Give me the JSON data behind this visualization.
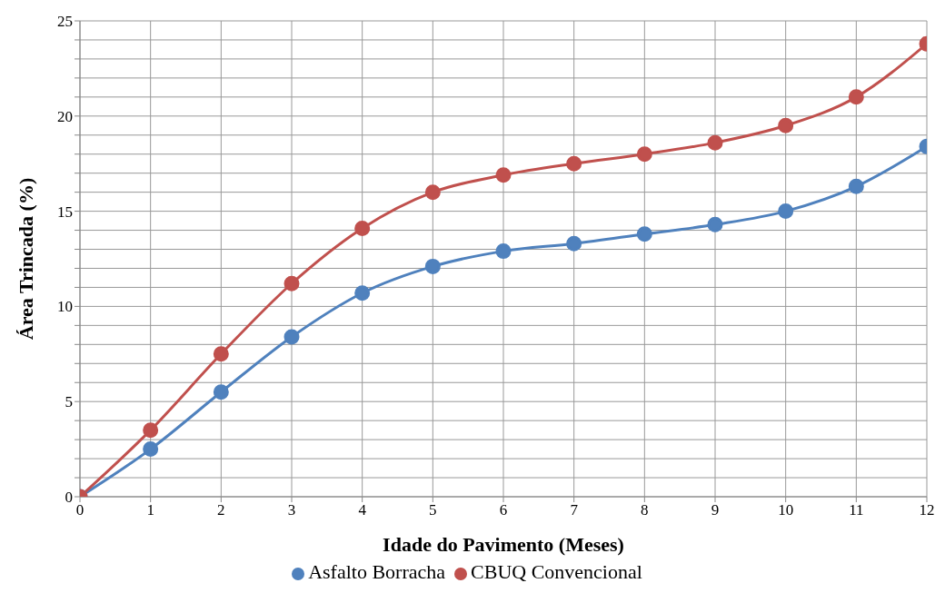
{
  "chart_data": {
    "type": "line",
    "xlabel": "Idade do Pavimento (Meses)",
    "ylabel": "Área Trincada (%)",
    "x": [
      0,
      1,
      2,
      3,
      4,
      5,
      6,
      7,
      8,
      9,
      10,
      11,
      12
    ],
    "series": [
      {
        "name": "Asfalto Borracha",
        "color": "#4f81bd",
        "values": [
          0,
          2.5,
          5.5,
          8.4,
          10.7,
          12.1,
          12.9,
          13.3,
          13.8,
          14.3,
          15.0,
          16.3,
          18.4
        ]
      },
      {
        "name": "CBUQ Convencional",
        "color": "#c0504d",
        "values": [
          0,
          3.5,
          7.5,
          11.2,
          14.1,
          16.0,
          16.9,
          17.5,
          18.0,
          18.6,
          19.5,
          21.0,
          23.8
        ]
      }
    ],
    "xlim": [
      0,
      12
    ],
    "xticks": [
      0,
      1,
      2,
      3,
      4,
      5,
      6,
      7,
      8,
      9,
      10,
      11,
      12
    ],
    "ylim": [
      0,
      25
    ],
    "yticks": [
      0,
      {
        "value": 1,
        "label": null
      },
      {
        "value": 2,
        "label": null
      },
      {
        "value": 3,
        "label": null
      },
      {
        "value": 4,
        "label": null
      },
      5,
      {
        "value": 6,
        "label": null
      },
      {
        "value": 7,
        "label": null
      },
      {
        "value": 8,
        "label": null
      },
      {
        "value": 9,
        "label": null
      },
      10,
      {
        "value": 11,
        "label": null
      },
      {
        "value": 12,
        "label": null
      },
      {
        "value": 13,
        "label": null
      },
      {
        "value": 14,
        "label": null
      },
      15,
      {
        "value": 16,
        "label": null
      },
      {
        "value": 17,
        "label": null
      },
      {
        "value": 18,
        "label": null
      },
      {
        "value": 19,
        "label": null
      },
      20,
      {
        "value": 21,
        "label": null
      },
      {
        "value": 22,
        "label": null
      },
      {
        "value": 23,
        "label": null
      },
      {
        "value": 24,
        "label": null
      },
      25
    ],
    "grid": true,
    "legend": "bottom",
    "marker": "circle",
    "line_style": "solid"
  }
}
